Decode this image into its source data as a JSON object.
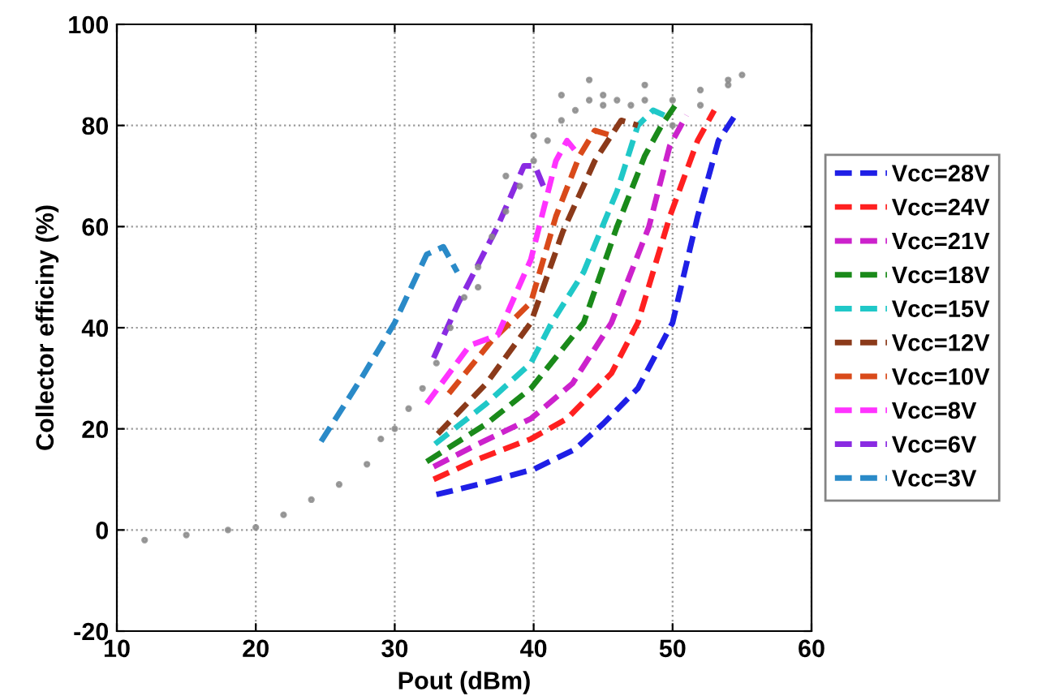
{
  "chart_data": {
    "type": "line",
    "xlabel": "Pout (dBm)",
    "ylabel": "Collector efficiny (%)",
    "xlim": [
      10,
      60
    ],
    "ylim": [
      -20,
      100
    ],
    "xticks": [
      10,
      20,
      30,
      40,
      50,
      60
    ],
    "yticks": [
      -20,
      0,
      20,
      40,
      60,
      80,
      100
    ],
    "grid": true,
    "legend": "right",
    "line_style": "dashed",
    "marker": "none",
    "series": [
      {
        "type": "scatter",
        "color": "#8a8a8a",
        "x": [
          12,
          15,
          18,
          20,
          22,
          24,
          26,
          28,
          29,
          30,
          31,
          32,
          33,
          34,
          35,
          36,
          36,
          37,
          38,
          38,
          39,
          40,
          40,
          41,
          42,
          42,
          43,
          44,
          44,
          45,
          45,
          46,
          47,
          48,
          48,
          50,
          50,
          52,
          52,
          54,
          54,
          55
        ],
        "values": [
          -2,
          -1,
          0,
          0.5,
          3,
          6,
          9,
          13,
          18,
          20,
          24,
          28,
          33,
          40,
          46,
          52,
          48,
          58,
          63,
          70,
          68,
          73,
          78,
          77,
          81,
          86,
          83,
          85,
          89,
          84,
          86,
          85,
          84,
          85,
          88,
          85,
          80,
          87,
          84,
          89,
          88,
          90
        ]
      },
      {
        "name": "Vcc=28V",
        "color": "#1f1fe6",
        "x": [
          33,
          36,
          40,
          43,
          45,
          47.5,
          50,
          51.8,
          53.3,
          54.5
        ],
        "values": [
          7,
          9,
          12,
          16,
          21,
          28,
          41,
          62,
          77,
          82
        ]
      },
      {
        "name": "Vcc=24V",
        "color": "#ff2020",
        "x": [
          32.8,
          36,
          39.8,
          42.4,
          45.6,
          47.5,
          49.8,
          51.8,
          53
        ],
        "values": [
          10,
          14,
          18,
          22,
          31,
          41,
          62,
          77,
          83
        ]
      },
      {
        "name": "Vcc=21V",
        "color": "#cc22cc",
        "x": [
          32.8,
          36,
          39.8,
          42.8,
          45.6,
          48.3,
          49.8,
          51
        ],
        "values": [
          12.5,
          17,
          22,
          29,
          41,
          60,
          76,
          82
        ]
      },
      {
        "name": "Vcc=18V",
        "color": "#1a8a1a",
        "x": [
          32.3,
          36.6,
          39.8,
          43.6,
          46,
          48,
          49.2,
          50.2
        ],
        "values": [
          13.5,
          21,
          28,
          41,
          60,
          74,
          80,
          84
        ]
      },
      {
        "name": "Vcc=15V",
        "color": "#20c8c8",
        "x": [
          32.9,
          36.6,
          39.8,
          41.3,
          43.6,
          46,
          47.5,
          48.6,
          49.4
        ],
        "values": [
          17,
          25,
          33,
          41,
          51,
          67,
          80,
          83,
          82
        ]
      },
      {
        "name": "Vcc=12V",
        "color": "#8b3a1a",
        "x": [
          33.1,
          36.6,
          39.8,
          42.1,
          44.4,
          46.3,
          47.5
        ],
        "values": [
          19,
          29,
          41,
          59,
          73,
          81,
          80
        ]
      },
      {
        "name": "Vcc=10V",
        "color": "#d94a1a",
        "x": [
          33.9,
          37,
          39.8,
          41.6,
          43.3,
          44.4,
          45.6
        ],
        "values": [
          27,
          37.5,
          45,
          62,
          74,
          79,
          78
        ]
      },
      {
        "name": "Vcc=8V",
        "color": "#ff33ff",
        "x": [
          32.3,
          35.4,
          37.4,
          39.8,
          41.6,
          42.4,
          43.3
        ],
        "values": [
          25,
          36.5,
          38.5,
          53.5,
          73,
          77,
          74
        ]
      },
      {
        "name": "Vcc=6V",
        "color": "#8a2be2",
        "x": [
          32.8,
          34.6,
          37.4,
          39.3,
          40.1,
          40.7
        ],
        "values": [
          34,
          45,
          60,
          72,
          72,
          68
        ]
      },
      {
        "name": "Vcc=3V",
        "color": "#2a8ac8",
        "x": [
          24.7,
          27.6,
          30,
          32.3,
          33.5,
          34.5
        ],
        "values": [
          17.5,
          30,
          41,
          54.5,
          56,
          51
        ]
      }
    ]
  }
}
